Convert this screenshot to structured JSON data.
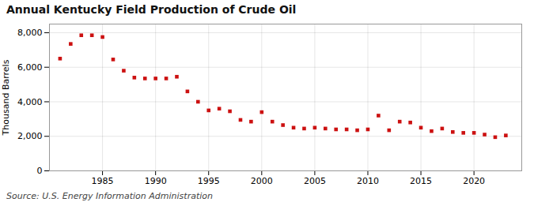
{
  "chart_data": {
    "type": "scatter",
    "title": "Annual Kentucky Field Production of Crude Oil",
    "ylabel": "Thousand Barrels",
    "source": "Source: U.S. Energy Information Administration",
    "x": [
      1981,
      1982,
      1983,
      1984,
      1985,
      1986,
      1987,
      1988,
      1989,
      1990,
      1991,
      1992,
      1993,
      1994,
      1995,
      1996,
      1997,
      1998,
      1999,
      2000,
      2001,
      2002,
      2003,
      2004,
      2005,
      2006,
      2007,
      2008,
      2009,
      2010,
      2011,
      2012,
      2013,
      2014,
      2015,
      2016,
      2017,
      2018,
      2019,
      2020,
      2021,
      2022,
      2023
    ],
    "values": [
      6500,
      7350,
      7850,
      7850,
      7750,
      6450,
      5800,
      5400,
      5350,
      5350,
      5350,
      5450,
      4600,
      4000,
      3500,
      3600,
      3450,
      2950,
      2850,
      3400,
      2850,
      2650,
      2500,
      2450,
      2500,
      2450,
      2400,
      2400,
      2350,
      2400,
      3200,
      2350,
      2850,
      2800,
      2500,
      2300,
      2450,
      2250,
      2200,
      2200,
      2100,
      1950,
      2050
    ],
    "color": "#cc1111",
    "marker": "square",
    "xlim": [
      1980,
      2024.5
    ],
    "xticks": [
      1985,
      1990,
      1995,
      2000,
      2005,
      2010,
      2015,
      2020
    ],
    "ylim": [
      0,
      8500
    ],
    "yticks": [
      0,
      {
        "value": 2000,
        "label": "2,000"
      },
      {
        "value": 4000,
        "label": "4,000"
      },
      {
        "value": 6000,
        "label": "6,000"
      },
      {
        "value": 8000,
        "label": "8,000"
      }
    ],
    "grid": true
  }
}
